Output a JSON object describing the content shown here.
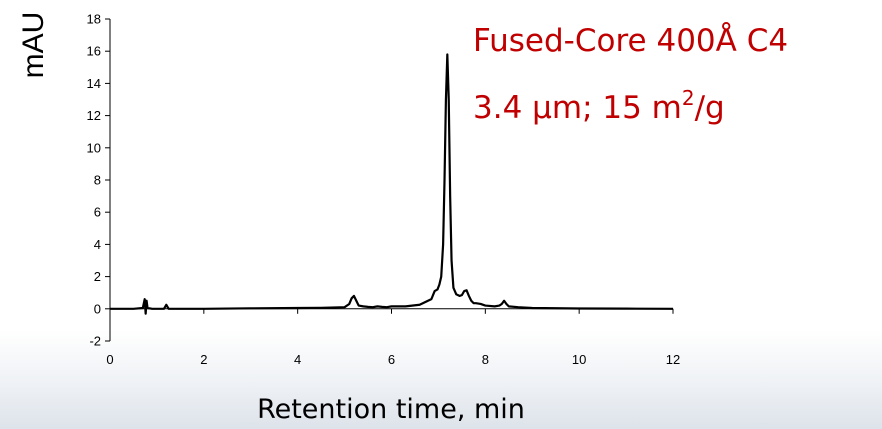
{
  "chart_data": {
    "type": "line",
    "title": "",
    "xlabel": "Retention time, min",
    "ylabel": "mAU",
    "xlim": [
      0,
      12
    ],
    "ylim": [
      -2,
      18
    ],
    "xticks": [
      0,
      2,
      4,
      6,
      8,
      10,
      12
    ],
    "yticks": [
      -2,
      0,
      2,
      4,
      6,
      8,
      10,
      12,
      14,
      16,
      18
    ],
    "grid": false,
    "legend": "none",
    "line_color": "#000000",
    "annotations": [
      {
        "text": "Fused-Core  400Å C4",
        "color": "#c00000"
      },
      {
        "text": "3.4 µm; 15 m",
        "superscript": "2",
        "suffix": "/g",
        "color": "#c00000"
      }
    ],
    "series": [
      {
        "x": [
          0.0,
          0.5,
          0.7,
          0.74,
          0.76,
          0.78,
          0.8,
          0.9,
          1.15,
          1.2,
          1.25,
          1.5,
          2.0,
          3.0,
          4.0,
          4.5,
          5.0,
          5.1,
          5.15,
          5.2,
          5.25,
          5.3,
          5.4,
          5.5,
          5.6,
          5.7,
          5.8,
          5.9,
          6.0,
          6.3,
          6.6,
          6.85,
          6.92,
          6.98,
          7.02,
          7.06,
          7.1,
          7.13,
          7.16,
          7.19,
          7.22,
          7.25,
          7.28,
          7.32,
          7.38,
          7.45,
          7.5,
          7.55,
          7.6,
          7.65,
          7.7,
          7.75,
          7.8,
          7.9,
          8.0,
          8.2,
          8.3,
          8.35,
          8.4,
          8.45,
          8.5,
          8.7,
          9.0,
          10.0,
          11.0,
          12.0
        ],
        "y": [
          0.0,
          0.0,
          0.05,
          0.6,
          -0.3,
          0.5,
          0.05,
          0.0,
          0.0,
          0.25,
          0.0,
          0.0,
          0.0,
          0.03,
          0.05,
          0.06,
          0.1,
          0.3,
          0.65,
          0.8,
          0.5,
          0.2,
          0.15,
          0.12,
          0.1,
          0.15,
          0.12,
          0.1,
          0.15,
          0.15,
          0.25,
          0.6,
          1.1,
          1.2,
          1.5,
          2.0,
          4.0,
          8.0,
          13.0,
          15.8,
          13.0,
          7.0,
          3.0,
          1.3,
          0.9,
          0.8,
          0.85,
          1.1,
          1.15,
          0.8,
          0.5,
          0.35,
          0.35,
          0.3,
          0.2,
          0.15,
          0.2,
          0.3,
          0.5,
          0.3,
          0.15,
          0.1,
          0.05,
          0.02,
          0.01,
          0.0
        ]
      }
    ]
  }
}
